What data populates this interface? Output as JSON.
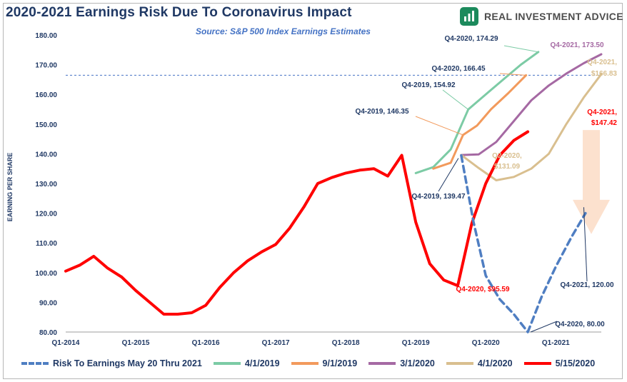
{
  "title": "2020-2021 Earnings Risk Due To Coronavirus Impact",
  "subtitle": "Source: S&P 500 Index Earnings Estimates",
  "brand": {
    "name": "REAL INVESTMENT ADVICE",
    "logo_icon": "bar-chart-icon",
    "color": "#1c8a5c"
  },
  "chart_data": {
    "type": "line",
    "title": "2020-2021 Earnings Risk Due To Coronavirus Impact",
    "subtitle": "Source: S&P 500 Index Earnings Estimates",
    "ylabel": "EARNING PER SHARE",
    "ylim": [
      80,
      180
    ],
    "yticks": [
      "80.00",
      "90.00",
      "100.00",
      "110.00",
      "120.00",
      "130.00",
      "140.00",
      "150.00",
      "160.00",
      "170.00",
      "180.00"
    ],
    "xticks": [
      {
        "label": "Q1-2014",
        "t": 0
      },
      {
        "label": "Q1-2015",
        "t": 4
      },
      {
        "label": "Q1-2016",
        "t": 8
      },
      {
        "label": "Q1-2017",
        "t": 12
      },
      {
        "label": "Q1-2018",
        "t": 16
      },
      {
        "label": "Q1-2019",
        "t": 20
      },
      {
        "label": "Q1-2020",
        "t": 24
      },
      {
        "label": "Q1-2021",
        "t": 28
      }
    ],
    "reference_line": {
      "value": 166.45,
      "color": "#4472c4"
    },
    "series": [
      {
        "name": "4/1/2019",
        "color": "#7ccba5",
        "dashed": false,
        "points": [
          [
            20,
            133.5
          ],
          [
            21,
            135.5
          ],
          [
            22,
            141.5
          ],
          [
            23,
            154.92
          ],
          [
            24,
            160
          ],
          [
            25,
            165
          ],
          [
            26,
            170
          ],
          [
            27,
            174.29
          ]
        ]
      },
      {
        "name": "9/1/2019",
        "color": "#f29a5c",
        "dashed": false,
        "points": [
          [
            21,
            135
          ],
          [
            22,
            137
          ],
          [
            22.7,
            146.35
          ],
          [
            23.5,
            149.5
          ],
          [
            24.3,
            155
          ],
          [
            25.3,
            160.5
          ],
          [
            26.3,
            166.45
          ]
        ]
      },
      {
        "name": "3/1/2020",
        "color": "#a569a3",
        "dashed": false,
        "points": [
          [
            22.6,
            139.6
          ],
          [
            23.6,
            139.8
          ],
          [
            24.6,
            144
          ],
          [
            25.6,
            151
          ],
          [
            26.6,
            158
          ],
          [
            27.6,
            163
          ],
          [
            28.6,
            167
          ],
          [
            29.6,
            170.5
          ],
          [
            30.6,
            173.5
          ]
        ]
      },
      {
        "name": "4/1/2020",
        "color": "#d9bf8f",
        "dashed": false,
        "points": [
          [
            22.6,
            139.6
          ],
          [
            23.6,
            135.2
          ],
          [
            24.6,
            131.09
          ],
          [
            25.6,
            132.2
          ],
          [
            26.6,
            135
          ],
          [
            27.6,
            140
          ],
          [
            28.6,
            150
          ],
          [
            29.6,
            159
          ],
          [
            30.6,
            166.83
          ]
        ]
      },
      {
        "name": "Risk To Earnings May 20 Thru 2021",
        "color": "#4f7ec2",
        "dashed": true,
        "points": [
          [
            22.6,
            139.47
          ],
          [
            23.3,
            117
          ],
          [
            24,
            99
          ],
          [
            24.8,
            91
          ],
          [
            25.6,
            86
          ],
          [
            26.4,
            80
          ],
          [
            27.2,
            92
          ],
          [
            28,
            102
          ],
          [
            28.9,
            112
          ],
          [
            29.7,
            120
          ]
        ]
      },
      {
        "name": "5/15/2020",
        "color": "#ff0000",
        "dashed": false,
        "points": [
          [
            0,
            100.5
          ],
          [
            0.8,
            102.5
          ],
          [
            1.6,
            105.5
          ],
          [
            2.4,
            101.5
          ],
          [
            3.2,
            98.5
          ],
          [
            4,
            94
          ],
          [
            4.8,
            90
          ],
          [
            5.6,
            86
          ],
          [
            6.4,
            86
          ],
          [
            7.2,
            86.5
          ],
          [
            8,
            89
          ],
          [
            8.8,
            95
          ],
          [
            9.6,
            100
          ],
          [
            10.4,
            104
          ],
          [
            11.2,
            107
          ],
          [
            12,
            109.5
          ],
          [
            12.8,
            115
          ],
          [
            13.6,
            122
          ],
          [
            14.4,
            130
          ],
          [
            15.2,
            132
          ],
          [
            16,
            133.5
          ],
          [
            16.8,
            134.5
          ],
          [
            17.6,
            135
          ],
          [
            18.4,
            132.5
          ],
          [
            19.2,
            139.5
          ],
          [
            20,
            117
          ],
          [
            20.8,
            103
          ],
          [
            21.6,
            97.5
          ],
          [
            22.4,
            95.59
          ],
          [
            23.2,
            116.5
          ],
          [
            24,
            130
          ],
          [
            24.8,
            139.5
          ],
          [
            25.6,
            144.5
          ],
          [
            26.4,
            147.42
          ]
        ]
      }
    ],
    "annotations": [
      {
        "text": "Q4-2020,  174.29",
        "color": "#1f3864"
      },
      {
        "text": "Q4-2021,  173.50",
        "color": "#a569a3"
      },
      {
        "text": "Q4-2020,  166.45",
        "color": "#1f3864"
      },
      {
        "text": "Q4-2021,",
        "color": "#d9bf8f"
      },
      {
        "text": "$166.83",
        "color": "#d9bf8f"
      },
      {
        "text": "Q4-2019,  154.92",
        "color": "#1f3864"
      },
      {
        "text": "Q4-2019,  146.35",
        "color": "#1f3864"
      },
      {
        "text": "Q4-2021,",
        "color": "#ff0000"
      },
      {
        "text": "$147.42",
        "color": "#ff0000"
      },
      {
        "text": "Q2-2020,",
        "color": "#d9bf8f"
      },
      {
        "text": "$131.09",
        "color": "#d9bf8f"
      },
      {
        "text": "Q4-2019,  139.47",
        "color": "#1f3864"
      },
      {
        "text": "Q4-2020, $95.59",
        "color": "#ff0000"
      },
      {
        "text": "Q4-2021,  120.00",
        "color": "#1f3864"
      },
      {
        "text": "Q4-2020,  80.00",
        "color": "#1f3864"
      }
    ],
    "legend": [
      {
        "label": "Risk To Earnings May 20 Thru 2021",
        "color": "#4f7ec2",
        "dashed": true
      },
      {
        "label": "4/1/2019",
        "color": "#7ccba5",
        "dashed": false
      },
      {
        "label": "9/1/2019",
        "color": "#f29a5c",
        "dashed": false
      },
      {
        "label": "3/1/2020",
        "color": "#a569a3",
        "dashed": false
      },
      {
        "label": "4/1/2020",
        "color": "#d9bf8f",
        "dashed": false
      },
      {
        "label": "5/15/2020",
        "color": "#ff0000",
        "dashed": false
      }
    ]
  }
}
